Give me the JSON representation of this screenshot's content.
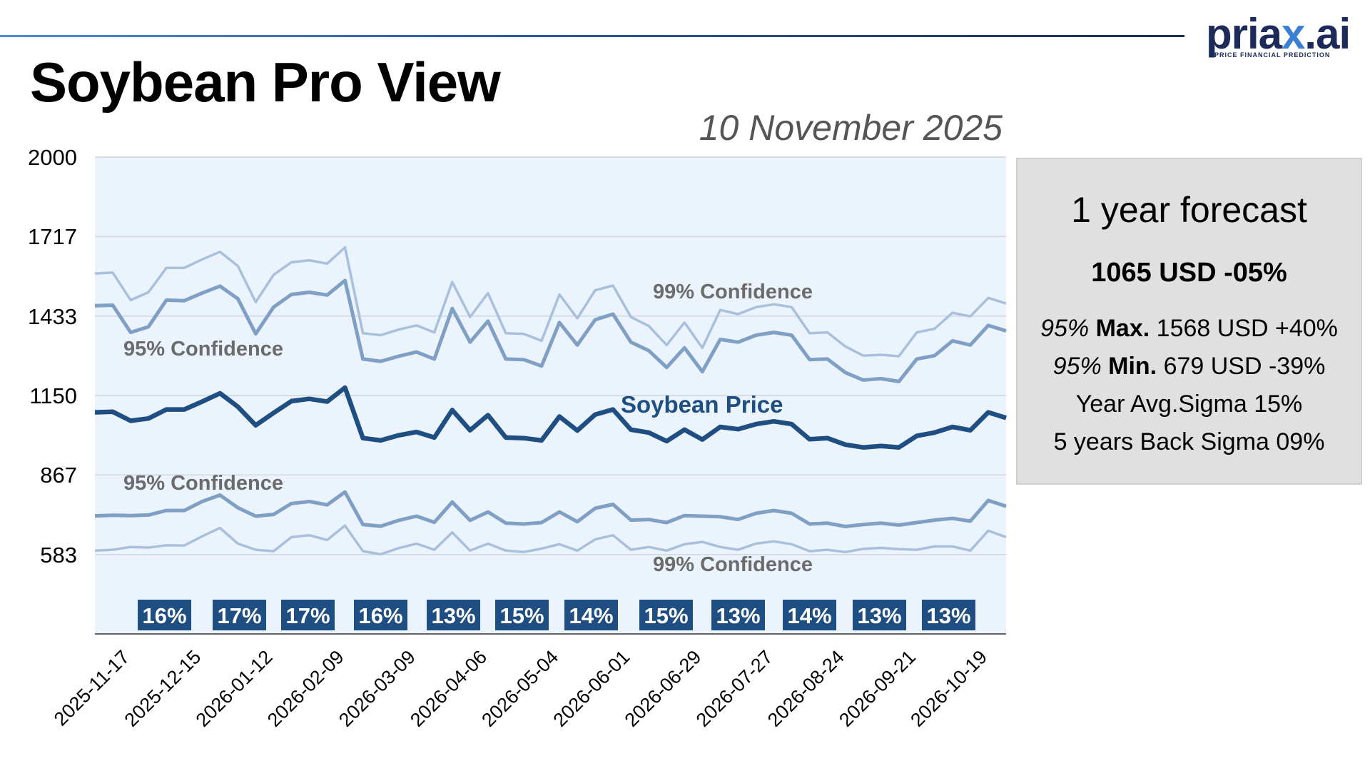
{
  "header": {
    "title": "Soybean Pro View",
    "date": "10 November 2025",
    "logo_prefix": "pria",
    "logo_x": "x",
    "logo_suffix": ".ai",
    "logo_tagline": "PRICE FINANCIAL PREDICTION"
  },
  "colors": {
    "price": "#1f4e82",
    "band95": "#7f9fc5",
    "band99": "#a9c0dc",
    "plot_bg": "#ebf3fd",
    "badge_bg": "#1f4e82",
    "logo": "#1c2b5a"
  },
  "forecast": {
    "heading": "1 year forecast",
    "value": "1065 USD -05%",
    "max_prefix": "95%",
    "max_label": "Max.",
    "max_value": "1568 USD +40%",
    "min_prefix": "95%",
    "min_label": "Min.",
    "min_value": "679 USD -39%",
    "year_sigma": "Year Avg.Sigma 15%",
    "back_sigma": "5 years Back Sigma 09%"
  },
  "chart_data": {
    "type": "line",
    "title": "",
    "xlabel": "",
    "ylabel": "",
    "ylim": [
      300,
      2000
    ],
    "yticks": [
      2000,
      1717,
      1433,
      1150,
      867,
      583
    ],
    "xtick_labels": [
      "2025-11-17",
      "2025-12-15",
      "2026-01-12",
      "2026-02-09",
      "2026-03-09",
      "2026-04-06",
      "2026-05-04",
      "2026-06-01",
      "2026-06-29",
      "2026-07-27",
      "2026-08-24",
      "2026-09-21",
      "2026-10-19"
    ],
    "x": [
      "2025-11-10",
      "2025-11-17",
      "2025-11-24",
      "2025-12-01",
      "2025-12-08",
      "2025-12-15",
      "2025-12-22",
      "2025-12-29",
      "2026-01-05",
      "2026-01-12",
      "2026-01-19",
      "2026-01-26",
      "2026-02-02",
      "2026-02-09",
      "2026-02-16",
      "2026-02-23",
      "2026-03-02",
      "2026-03-09",
      "2026-03-16",
      "2026-03-23",
      "2026-03-30",
      "2026-04-06",
      "2026-04-13",
      "2026-04-20",
      "2026-04-27",
      "2026-05-04",
      "2026-05-11",
      "2026-05-18",
      "2026-05-25",
      "2026-06-01",
      "2026-06-08",
      "2026-06-15",
      "2026-06-22",
      "2026-06-29",
      "2026-07-06",
      "2026-07-13",
      "2026-07-20",
      "2026-07-27",
      "2026-08-03",
      "2026-08-10",
      "2026-08-17",
      "2026-08-24",
      "2026-08-31",
      "2026-09-07",
      "2026-09-14",
      "2026-09-21",
      "2026-09-28",
      "2026-10-05",
      "2026-10-12",
      "2026-10-19",
      "2026-10-26",
      "2026-11-02"
    ],
    "series": [
      {
        "name": "Soybean Price",
        "values": [
          1090,
          1092,
          1060,
          1068,
          1100,
          1100,
          1128,
          1158,
          1110,
          1044,
          1088,
          1130,
          1138,
          1128,
          1178,
          998,
          990,
          1008,
          1020,
          1000,
          1098,
          1026,
          1080,
          1000,
          998,
          990,
          1075,
          1025,
          1082,
          1100,
          1028,
          1018,
          987,
          1028,
          993,
          1038,
          1030,
          1048,
          1058,
          1048,
          994,
          998,
          975,
          965,
          970,
          965,
          1006,
          1018,
          1038,
          1026,
          1090,
          1070
        ]
      },
      {
        "name": "95% Confidence (upper)",
        "values": [
          1470,
          1472,
          1375,
          1395,
          1490,
          1488,
          1515,
          1540,
          1495,
          1370,
          1465,
          1510,
          1518,
          1508,
          1560,
          1280,
          1272,
          1290,
          1305,
          1280,
          1460,
          1340,
          1415,
          1280,
          1278,
          1255,
          1410,
          1330,
          1420,
          1440,
          1340,
          1310,
          1250,
          1320,
          1235,
          1350,
          1340,
          1365,
          1375,
          1365,
          1278,
          1280,
          1232,
          1205,
          1210,
          1200,
          1280,
          1292,
          1345,
          1330,
          1400,
          1380
        ]
      },
      {
        "name": "99% Confidence (upper)",
        "values": [
          1585,
          1588,
          1490,
          1518,
          1605,
          1605,
          1635,
          1662,
          1612,
          1483,
          1580,
          1625,
          1632,
          1620,
          1678,
          1372,
          1365,
          1385,
          1400,
          1375,
          1555,
          1430,
          1515,
          1372,
          1370,
          1345,
          1510,
          1425,
          1525,
          1542,
          1430,
          1398,
          1330,
          1410,
          1320,
          1455,
          1440,
          1465,
          1475,
          1465,
          1372,
          1375,
          1325,
          1292,
          1295,
          1290,
          1375,
          1388,
          1445,
          1432,
          1498,
          1478
        ]
      },
      {
        "name": "95% Confidence (lower)",
        "values": [
          721,
          723,
          722,
          724,
          740,
          740,
          772,
          795,
          750,
          720,
          726,
          765,
          772,
          760,
          806,
          690,
          684,
          705,
          720,
          698,
          770,
          705,
          735,
          695,
          692,
          697,
          735,
          700,
          748,
          762,
          706,
          708,
          697,
          722,
          720,
          718,
          708,
          730,
          740,
          730,
          692,
          695,
          683,
          690,
          695,
          688,
          697,
          706,
          712,
          702,
          776,
          755
        ]
      },
      {
        "name": "99% Confidence (lower)",
        "values": [
          597,
          600,
          610,
          608,
          616,
          615,
          648,
          678,
          622,
          600,
          595,
          645,
          652,
          635,
          686,
          595,
          584,
          606,
          622,
          600,
          662,
          597,
          622,
          597,
          592,
          604,
          620,
          597,
          637,
          652,
          600,
          610,
          597,
          620,
          628,
          610,
          600,
          622,
          630,
          620,
          595,
          600,
          592,
          603,
          607,
          602,
          600,
          612,
          612,
          597,
          668,
          645
        ]
      }
    ],
    "annotations": [
      "99% Confidence",
      "95% Confidence",
      "Soybean Price",
      "95% Confidence",
      "99% Confidence"
    ],
    "sigma_badges": [
      "16%",
      "17%",
      "17%",
      "16%",
      "13%",
      "15%",
      "14%",
      "15%",
      "13%",
      "14%",
      "13%",
      "13%"
    ],
    "grid": true,
    "legend": "none"
  }
}
